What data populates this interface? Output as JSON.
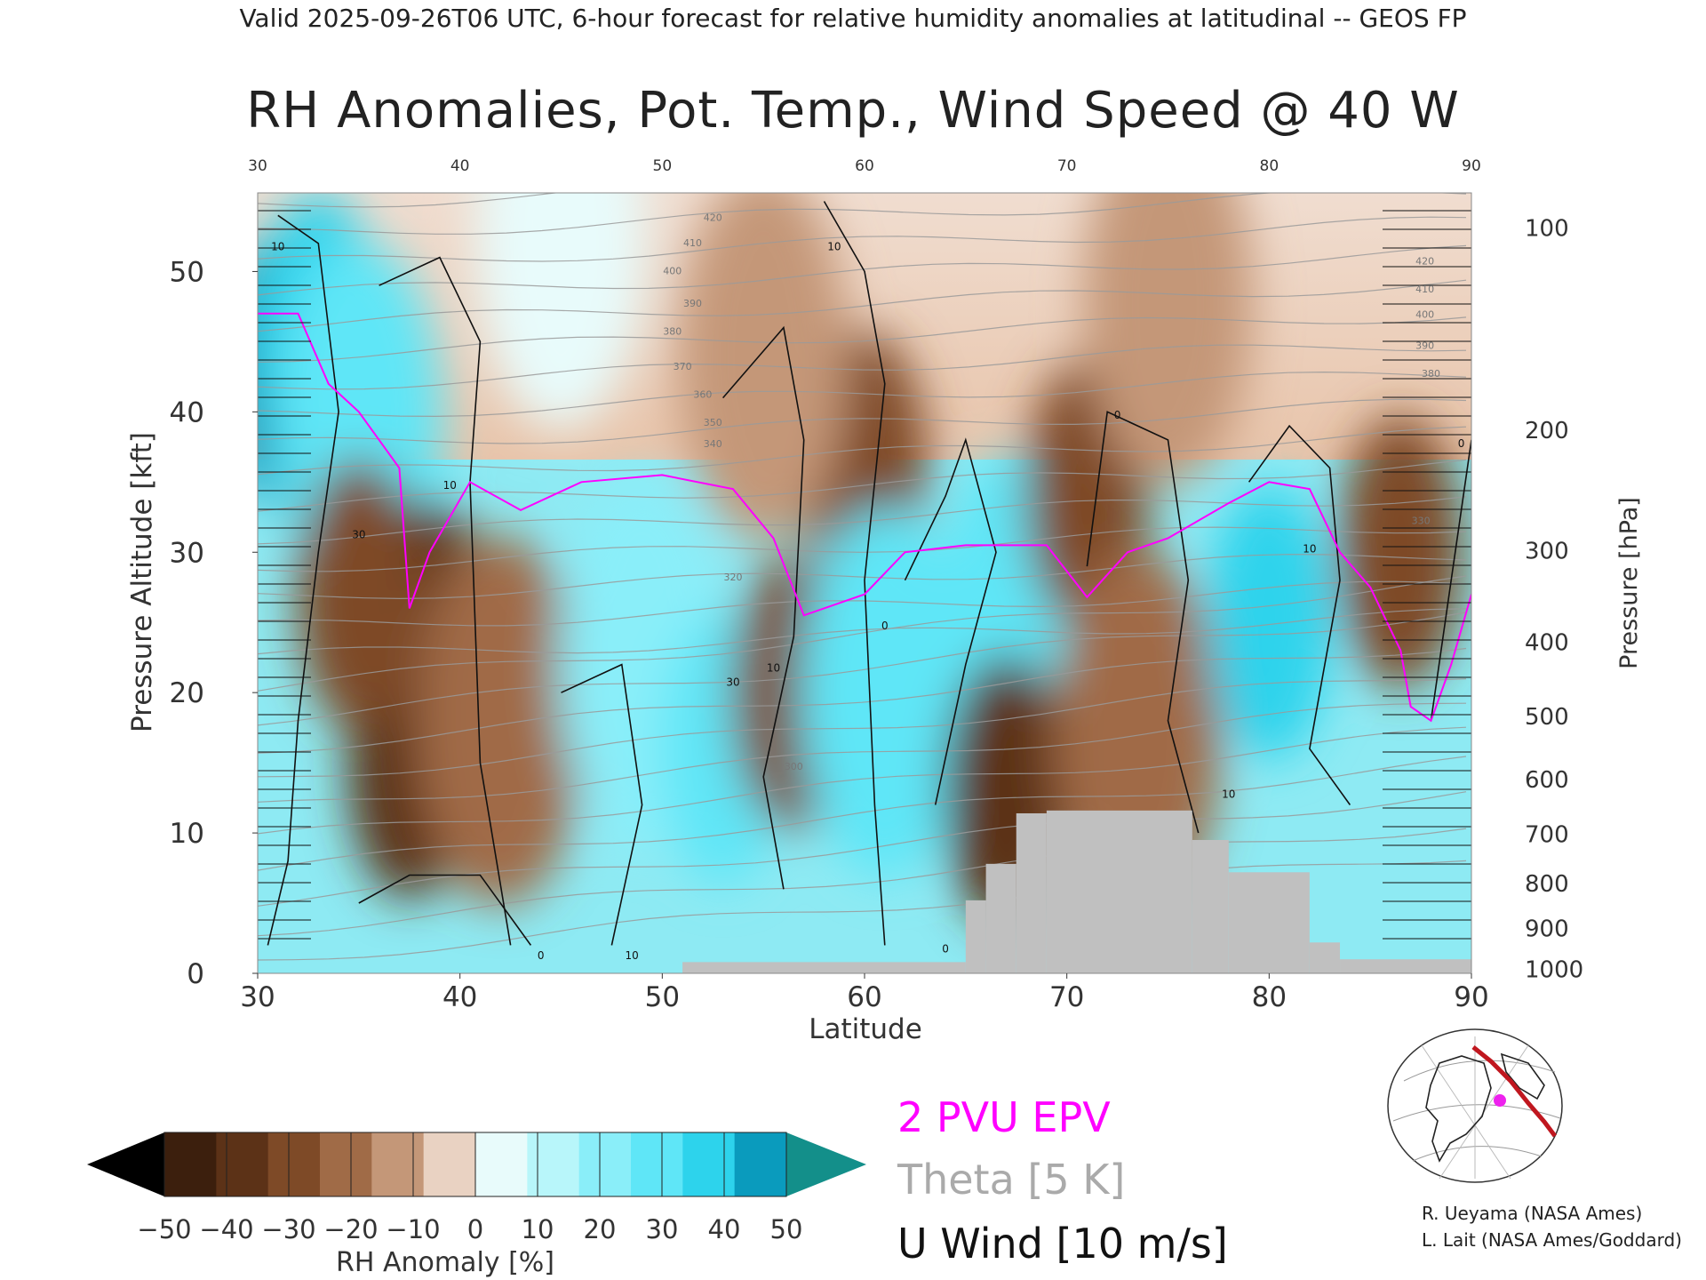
{
  "header": {
    "suptitle": "Valid 2025-09-26T06 UTC, 6-hour forecast for relative humidity anomalies at latitudinal -- GEOS FP",
    "title": "RH Anomalies, Pot. Temp., Wind Speed @ 40 W"
  },
  "chart_data": {
    "type": "heatmap",
    "title": "RH Anomalies, Pot. Temp., Wind Speed @ 40 W",
    "xlabel": "Latitude",
    "ylabel": "Pressure Altitude [kft]",
    "y2label": "Pressure [hPa]",
    "xlim": [
      30,
      90
    ],
    "ylim": [
      0,
      55.6
    ],
    "x_ticks": [
      30,
      40,
      50,
      60,
      70,
      80,
      90
    ],
    "top_ticks": [
      30,
      40,
      50,
      60,
      70,
      80,
      90
    ],
    "y_ticks": [
      0,
      10,
      20,
      30,
      40,
      50
    ],
    "pressure_ticks": [
      {
        "hPa": 100,
        "kft": 53.1
      },
      {
        "hPa": 200,
        "kft": 38.7
      },
      {
        "hPa": 300,
        "kft": 30.1
      },
      {
        "hPa": 400,
        "kft": 23.6
      },
      {
        "hPa": 500,
        "kft": 18.3
      },
      {
        "hPa": 600,
        "kft": 13.8
      },
      {
        "hPa": 700,
        "kft": 9.9
      },
      {
        "hPa": 800,
        "kft": 6.4
      },
      {
        "hPa": 900,
        "kft": 3.2
      },
      {
        "hPa": 1000,
        "kft": 0.3
      }
    ],
    "anomaly_field": [
      {
        "lat": 31,
        "kft": 43,
        "value": 50
      },
      {
        "lat": 33,
        "kft": 46,
        "value": 45
      },
      {
        "lat": 35,
        "kft": 39,
        "value": 30
      },
      {
        "lat": 37.5,
        "kft": 15,
        "value": -50
      },
      {
        "lat": 38.5,
        "kft": 24,
        "value": -45
      },
      {
        "lat": 35,
        "kft": 27,
        "value": -35
      },
      {
        "lat": 42,
        "kft": 18,
        "value": -30
      },
      {
        "lat": 49,
        "kft": 22,
        "value": 20
      },
      {
        "lat": 53,
        "kft": 16,
        "value": 35
      },
      {
        "lat": 56.5,
        "kft": 20,
        "value": -38
      },
      {
        "lat": 60,
        "kft": 36,
        "value": -40
      },
      {
        "lat": 61,
        "kft": 20,
        "value": 30
      },
      {
        "lat": 67,
        "kft": 27,
        "value": 35
      },
      {
        "lat": 67,
        "kft": 13,
        "value": -45
      },
      {
        "lat": 71,
        "kft": 34,
        "value": -38
      },
      {
        "lat": 73.5,
        "kft": 17,
        "value": -25
      },
      {
        "lat": 80,
        "kft": 25,
        "value": 40
      },
      {
        "lat": 86.5,
        "kft": 30,
        "value": -35
      },
      {
        "lat": 55,
        "kft": 44,
        "value": -12
      },
      {
        "lat": 75,
        "kft": 48,
        "value": -15
      },
      {
        "lat": 45,
        "kft": 52,
        "value": 5
      }
    ],
    "terrain": [
      {
        "lat_from": 51,
        "lat_to": 65,
        "kft": 0.8
      },
      {
        "lat_from": 65,
        "lat_to": 66,
        "kft": 5.2
      },
      {
        "lat_from": 66,
        "lat_to": 67.5,
        "kft": 7.8
      },
      {
        "lat_from": 67.5,
        "lat_to": 69,
        "kft": 11.4
      },
      {
        "lat_from": 69,
        "lat_to": 76.2,
        "kft": 11.6
      },
      {
        "lat_from": 76.2,
        "lat_to": 78,
        "kft": 9.5
      },
      {
        "lat_from": 78,
        "lat_to": 82,
        "kft": 7.2
      },
      {
        "lat_from": 82,
        "lat_to": 83.5,
        "kft": 2.2
      },
      {
        "lat_from": 83.5,
        "lat_to": 90,
        "kft": 1.0
      }
    ],
    "theta_labels": [
      {
        "lat": 52.5,
        "kft": 53.6,
        "value": "420"
      },
      {
        "lat": 51.5,
        "kft": 51.8,
        "value": "410"
      },
      {
        "lat": 50.5,
        "kft": 49.8,
        "value": "400"
      },
      {
        "lat": 51.5,
        "kft": 47.5,
        "value": "390"
      },
      {
        "lat": 50.5,
        "kft": 45.5,
        "value": "380"
      },
      {
        "lat": 51,
        "kft": 43.0,
        "value": "370"
      },
      {
        "lat": 52,
        "kft": 41.0,
        "value": "360"
      },
      {
        "lat": 52.5,
        "kft": 39.0,
        "value": "350"
      },
      {
        "lat": 52.5,
        "kft": 37.5,
        "value": "340"
      },
      {
        "lat": 87.7,
        "kft": 50.5,
        "value": "420"
      },
      {
        "lat": 87.7,
        "kft": 48.5,
        "value": "410"
      },
      {
        "lat": 87.7,
        "kft": 46.7,
        "value": "400"
      },
      {
        "lat": 87.7,
        "kft": 44.5,
        "value": "390"
      },
      {
        "lat": 88,
        "kft": 42.5,
        "value": "380"
      },
      {
        "lat": 87.5,
        "kft": 32.0,
        "value": "330"
      },
      {
        "lat": 53.5,
        "kft": 28.0,
        "value": "320"
      },
      {
        "lat": 56.5,
        "kft": 14.5,
        "value": "300"
      }
    ],
    "wind_labels": [
      {
        "lat": 31,
        "kft": 51.5,
        "value": "10"
      },
      {
        "lat": 35,
        "kft": 31.0,
        "value": "30"
      },
      {
        "lat": 39.5,
        "kft": 34.5,
        "value": "10"
      },
      {
        "lat": 58.5,
        "kft": 51.5,
        "value": "10"
      },
      {
        "lat": 55.5,
        "kft": 21.5,
        "value": "10"
      },
      {
        "lat": 53.5,
        "kft": 20.5,
        "value": "30"
      },
      {
        "lat": 61,
        "kft": 24.5,
        "value": "0"
      },
      {
        "lat": 72.5,
        "kft": 39.5,
        "value": "0"
      },
      {
        "lat": 78,
        "kft": 12.5,
        "value": "10"
      },
      {
        "lat": 82,
        "kft": 30.0,
        "value": "10"
      },
      {
        "lat": 44,
        "kft": 1.0,
        "value": "0"
      },
      {
        "lat": 48.5,
        "kft": 1.0,
        "value": "10"
      },
      {
        "lat": 64,
        "kft": 1.5,
        "value": "0"
      },
      {
        "lat": 89.5,
        "kft": 37.5,
        "value": "0"
      }
    ]
  },
  "colorbar": {
    "ticks": [
      "−50",
      "−40",
      "−30",
      "−20",
      "−10",
      "0",
      "10",
      "20",
      "30",
      "40",
      "50"
    ],
    "label": "RH Anomaly [%]",
    "colors": [
      "#000000",
      "#3c1f0d",
      "#5c3217",
      "#7e4a27",
      "#a06b47",
      "#c49778",
      "#e9d2c2",
      "#e8fbfb",
      "#b8f6fa",
      "#8aeef9",
      "#5fe6f7",
      "#2dd3ec",
      "#0a9bbd",
      "#0e8f8c"
    ],
    "over_color": "#138f8a",
    "under_color": "#000000"
  },
  "legend": {
    "epv": "2 PVU EPV",
    "theta": "Theta [5 K]",
    "wind": "U Wind [10 m/s]",
    "epv_color": "#ff00ff",
    "theta_color": "#a8a8a8",
    "wind_color": "#111111"
  },
  "credits": {
    "line1": "R. Ueyama (NASA Ames)",
    "line2": "L. Lait (NASA Ames/Goddard)"
  }
}
